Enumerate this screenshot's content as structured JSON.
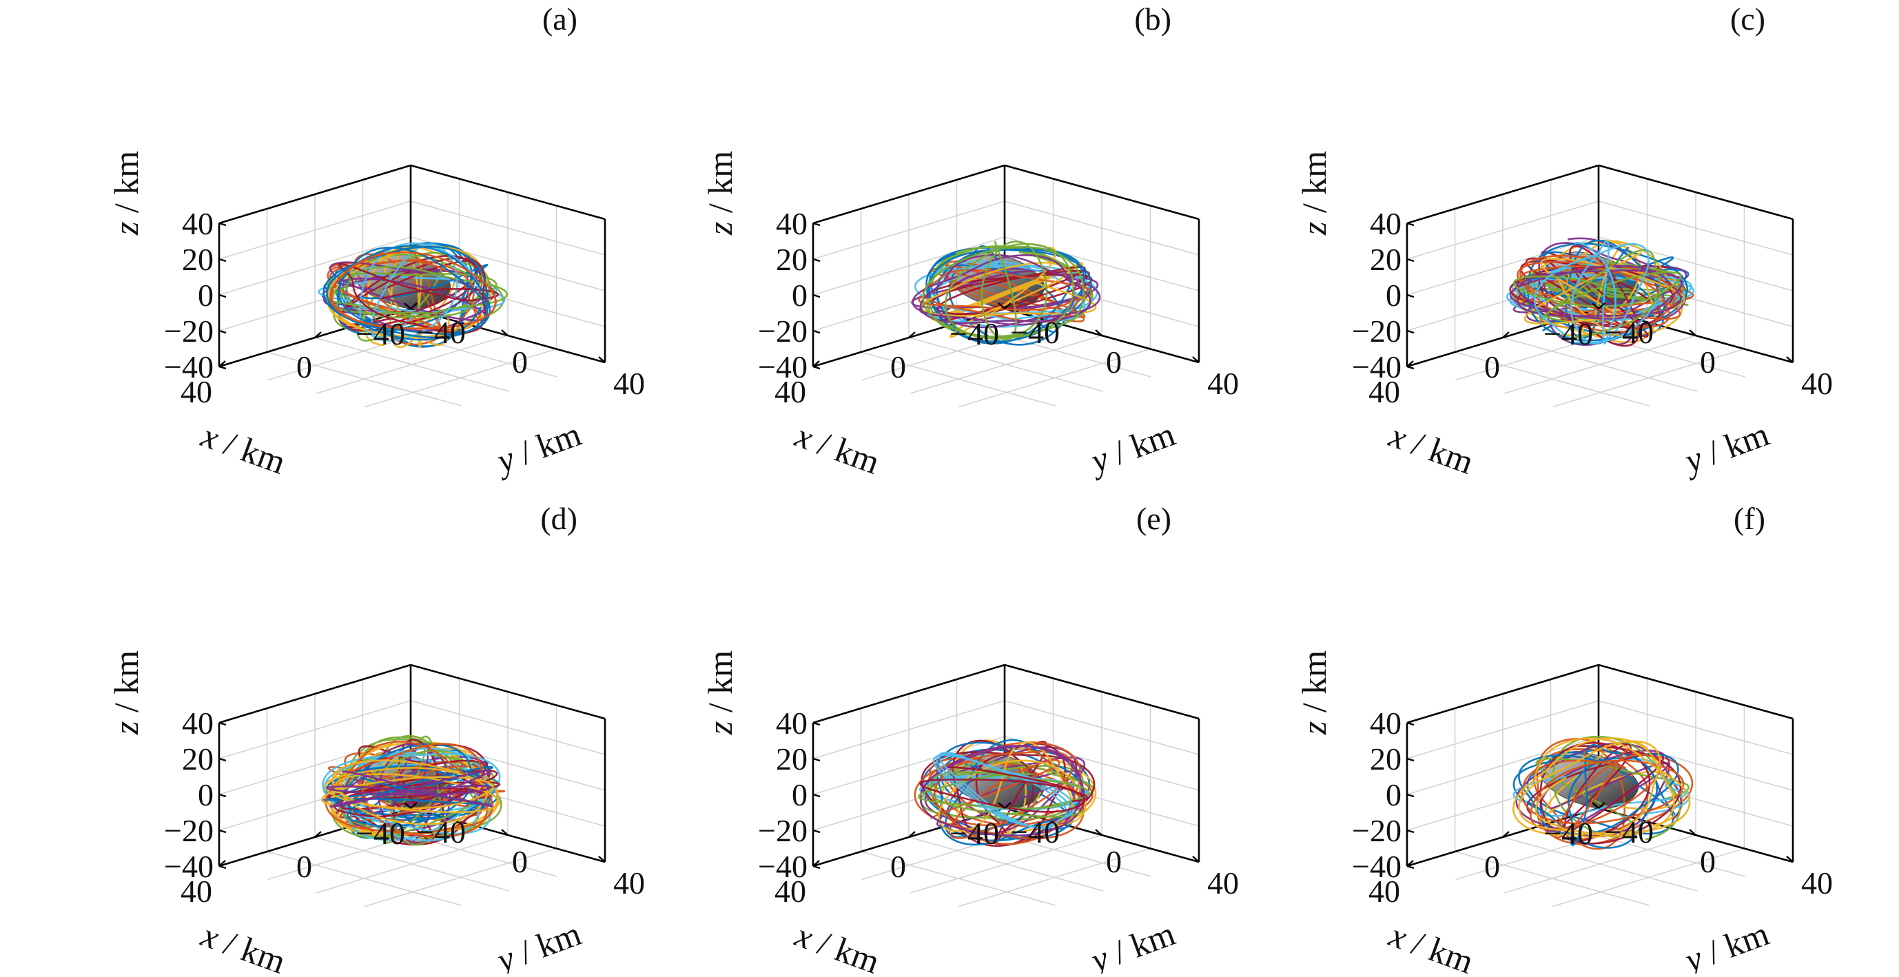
{
  "chart_data": [
    {
      "panel": "(a)",
      "type": "line",
      "subtype": "3d-trajectories",
      "xlabel": "x / km",
      "ylabel": "y / km",
      "zlabel": "z / km",
      "xlim": [
        -40,
        40
      ],
      "ylim": [
        -40,
        40
      ],
      "zlim": [
        -40,
        40
      ],
      "xticks": [
        "−40",
        "0",
        "40"
      ],
      "yticks": [
        "−40",
        "0",
        "40"
      ],
      "zticks": [
        "−40",
        "−20",
        "0",
        "20",
        "40"
      ],
      "grid": true,
      "trajectory_radius_km": 24,
      "trajectory_count": 16,
      "central_body": "asteroid model"
    },
    {
      "panel": "(b)",
      "type": "line",
      "subtype": "3d-trajectories",
      "xlabel": "x / km",
      "ylabel": "y / km",
      "zlabel": "z / km",
      "xlim": [
        -40,
        40
      ],
      "ylim": [
        -40,
        40
      ],
      "zlim": [
        -40,
        40
      ],
      "xticks": [
        "−40",
        "0",
        "40"
      ],
      "yticks": [
        "−40",
        "0",
        "40"
      ],
      "zticks": [
        "−40",
        "−20",
        "0",
        "20",
        "40"
      ],
      "grid": true,
      "trajectory_radius_km": 24,
      "trajectory_count": 12,
      "central_body": "asteroid model"
    },
    {
      "panel": "(c)",
      "type": "line",
      "subtype": "3d-trajectories",
      "xlabel": "x / km",
      "ylabel": "y / km",
      "zlabel": "z / km",
      "xlim": [
        -40,
        40
      ],
      "ylim": [
        -40,
        40
      ],
      "zlim": [
        -40,
        40
      ],
      "xticks": [
        "−40",
        "0",
        "40"
      ],
      "yticks": [
        "−40",
        "0",
        "40"
      ],
      "zticks": [
        "−40",
        "−20",
        "0",
        "20",
        "40"
      ],
      "grid": true,
      "trajectory_radius_km": 24,
      "trajectory_count": 20,
      "central_body": "asteroid model"
    },
    {
      "panel": "(d)",
      "type": "line",
      "subtype": "3d-trajectories",
      "xlabel": "x / km",
      "ylabel": "y / km",
      "zlabel": "z / km",
      "xlim": [
        -40,
        40
      ],
      "ylim": [
        -40,
        40
      ],
      "zlim": [
        -40,
        40
      ],
      "xticks": [
        "−40",
        "0",
        "40"
      ],
      "yticks": [
        "−40",
        "0",
        "40"
      ],
      "zticks": [
        "−40",
        "−20",
        "0",
        "20",
        "40"
      ],
      "grid": true,
      "trajectory_radius_km": 24,
      "trajectory_count": 18,
      "central_body": "asteroid model"
    },
    {
      "panel": "(e)",
      "type": "line",
      "subtype": "3d-trajectories",
      "xlabel": "x / km",
      "ylabel": "y / km",
      "zlabel": "z / km",
      "xlim": [
        -40,
        40
      ],
      "ylim": [
        -40,
        40
      ],
      "zlim": [
        -40,
        40
      ],
      "xticks": [
        "−40",
        "0",
        "40"
      ],
      "yticks": [
        "−40",
        "0",
        "40"
      ],
      "zticks": [
        "−40",
        "−20",
        "0",
        "20",
        "40"
      ],
      "grid": true,
      "trajectory_radius_km": 24,
      "trajectory_count": 14,
      "central_body": "asteroid model"
    },
    {
      "panel": "(f)",
      "type": "line",
      "subtype": "3d-trajectories",
      "xlabel": "x / km",
      "ylabel": "y / km",
      "zlabel": "z / km",
      "xlim": [
        -40,
        40
      ],
      "ylim": [
        -40,
        40
      ],
      "zlim": [
        -40,
        40
      ],
      "xticks": [
        "−40",
        "0",
        "40"
      ],
      "yticks": [
        "−40",
        "0",
        "40"
      ],
      "zticks": [
        "−40",
        "−20",
        "0",
        "20",
        "40"
      ],
      "grid": true,
      "trajectory_radius_km": 24,
      "trajectory_count": 10,
      "central_body": "asteroid model"
    }
  ],
  "colors": {
    "trajectory_palette": [
      "#0072BD",
      "#D95319",
      "#EDB120",
      "#7E2F8E",
      "#77AC30",
      "#4DBEEE",
      "#A2142F"
    ],
    "asteroid_light": "#9a9a9a",
    "asteroid_dark": "#2e2e2e"
  }
}
